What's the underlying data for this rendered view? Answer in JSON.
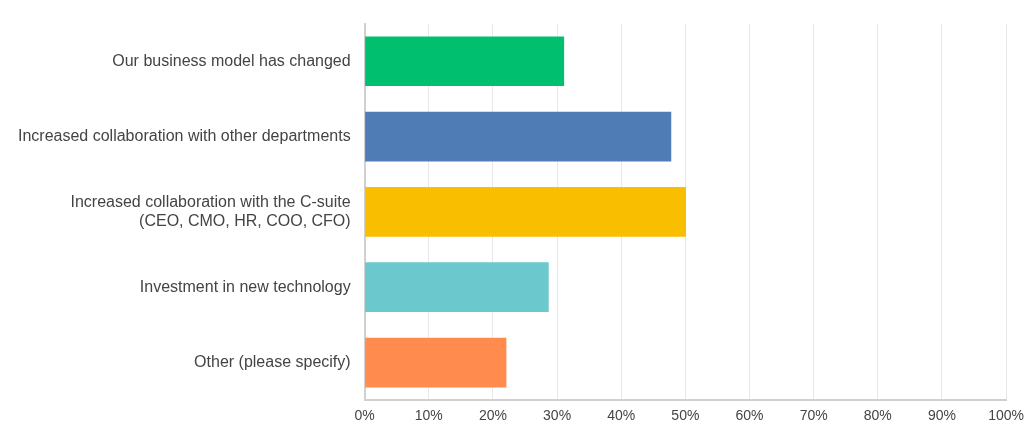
{
  "chart_data": {
    "type": "bar",
    "orientation": "horizontal",
    "categories": [
      "Our business model has changed",
      "Increased collaboration with other departments",
      "Increased collaboration with the C-suite\n(CEO, CMO, HR, COO, CFO)",
      "Investment in new technology",
      "Other (please specify)"
    ],
    "values": [
      31.1,
      47.8,
      50.1,
      28.7,
      22.1
    ],
    "colors": [
      "#00bf6f",
      "#507cb6",
      "#f9be00",
      "#6bc8cd",
      "#ff8b4f"
    ],
    "xlim": [
      0,
      100
    ],
    "xticks": [
      {
        "value": 0,
        "label": "0%"
      },
      {
        "value": 10,
        "label": "10%"
      },
      {
        "value": 20,
        "label": "20%"
      },
      {
        "value": 30,
        "label": "30%"
      },
      {
        "value": 40,
        "label": "40%"
      },
      {
        "value": 50,
        "label": "50%"
      },
      {
        "value": 60,
        "label": "60%"
      },
      {
        "value": 70,
        "label": "70%"
      },
      {
        "value": 80,
        "label": "80%"
      },
      {
        "value": 90,
        "label": "90%"
      },
      {
        "value": 100,
        "label": "100%"
      }
    ],
    "grid": "x"
  }
}
